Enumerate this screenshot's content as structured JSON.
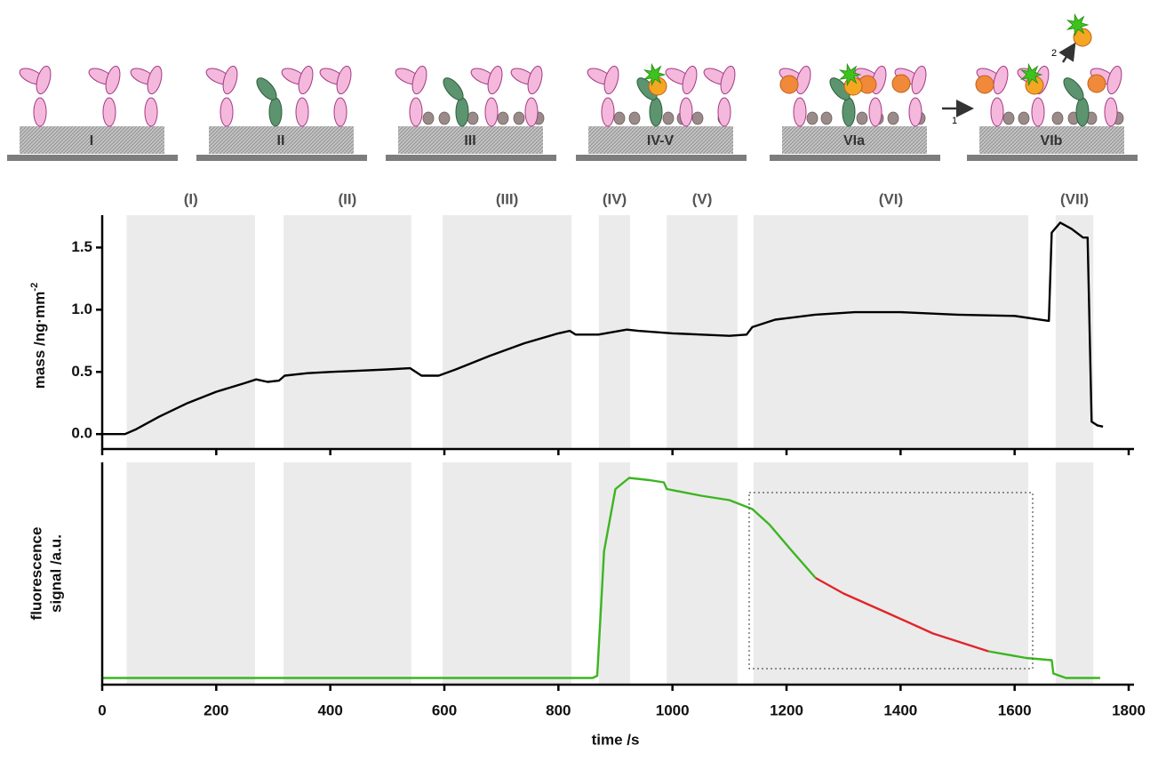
{
  "schematic": {
    "panels": [
      "I",
      "II",
      "III",
      "IV-V",
      "VIa",
      "VIb"
    ],
    "steps": [
      "1",
      "2"
    ]
  },
  "chart_data": [
    {
      "type": "line",
      "y_label": "mass /ng·mm",
      "y_label_sup": "-2",
      "xlim": [
        0,
        1800
      ],
      "ylim": [
        -0.12,
        1.76
      ],
      "yticks": [
        {
          "value": 0,
          "label": "0.0"
        },
        0.5,
        {
          "value": 1,
          "label": "1.0"
        },
        1.5
      ],
      "regions": [
        {
          "label": "(I)",
          "start": 43,
          "end": 268
        },
        {
          "label": "(II)",
          "start": 318,
          "end": 542
        },
        {
          "label": "(III)",
          "start": 597,
          "end": 823
        },
        {
          "label": "(IV)",
          "start": 871,
          "end": 926
        },
        {
          "label": "(V)",
          "start": 990,
          "end": 1114
        },
        {
          "label": "(VI)",
          "start": 1142,
          "end": 1624
        },
        {
          "label": "(VII)",
          "start": 1672,
          "end": 1738
        }
      ],
      "series": [
        {
          "color": "#000000",
          "x": [
            0,
            40,
            60,
            100,
            150,
            200,
            250,
            270,
            290,
            310,
            320,
            360,
            400,
            450,
            500,
            540,
            560,
            590,
            620,
            680,
            740,
            800,
            820,
            830,
            870,
            920,
            940,
            1000,
            1050,
            1100,
            1130,
            1140,
            1180,
            1250,
            1320,
            1400,
            1500,
            1600,
            1660,
            1665,
            1680,
            1700,
            1720,
            1728,
            1735,
            1745,
            1755
          ],
          "values": [
            0.0,
            0.0,
            0.04,
            0.14,
            0.25,
            0.34,
            0.41,
            0.44,
            0.42,
            0.43,
            0.47,
            0.49,
            0.5,
            0.51,
            0.52,
            0.53,
            0.47,
            0.47,
            0.52,
            0.63,
            0.73,
            0.81,
            0.83,
            0.8,
            0.8,
            0.84,
            0.83,
            0.81,
            0.8,
            0.79,
            0.8,
            0.86,
            0.92,
            0.96,
            0.98,
            0.98,
            0.96,
            0.95,
            0.91,
            1.62,
            1.7,
            1.65,
            1.58,
            1.58,
            0.1,
            0.07,
            0.06
          ]
        }
      ]
    },
    {
      "type": "line",
      "x_label": "time /s",
      "y_label": [
        "fluorescence",
        "signal /a.u."
      ],
      "xlim": [
        0,
        1800
      ],
      "ylim": [
        0,
        1
      ],
      "xticks": [
        0,
        200,
        400,
        600,
        800,
        1000,
        1200,
        1400,
        1600,
        1800
      ],
      "series": [
        {
          "color": "#3cb521",
          "x": [
            0,
            400,
            860,
            868,
            880,
            900,
            924,
            960,
            985,
            990,
            1050,
            1100,
            1140,
            1170,
            1210,
            1251,
            1300,
            1554,
            1620,
            1665,
            1668,
            1690,
            1750
          ],
          "values": [
            0.03,
            0.03,
            0.03,
            0.04,
            0.6,
            0.88,
            0.93,
            0.92,
            0.91,
            0.88,
            0.85,
            0.83,
            0.79,
            0.72,
            0.6,
            0.48,
            null,
            0.15,
            0.12,
            0.11,
            0.05,
            0.03,
            0.03
          ]
        },
        {
          "color": "#e0252a",
          "x": [
            1251,
            1300,
            1379,
            1457,
            1554
          ],
          "values": [
            0.48,
            0.41,
            0.32,
            0.23,
            0.15
          ]
        }
      ]
    }
  ]
}
